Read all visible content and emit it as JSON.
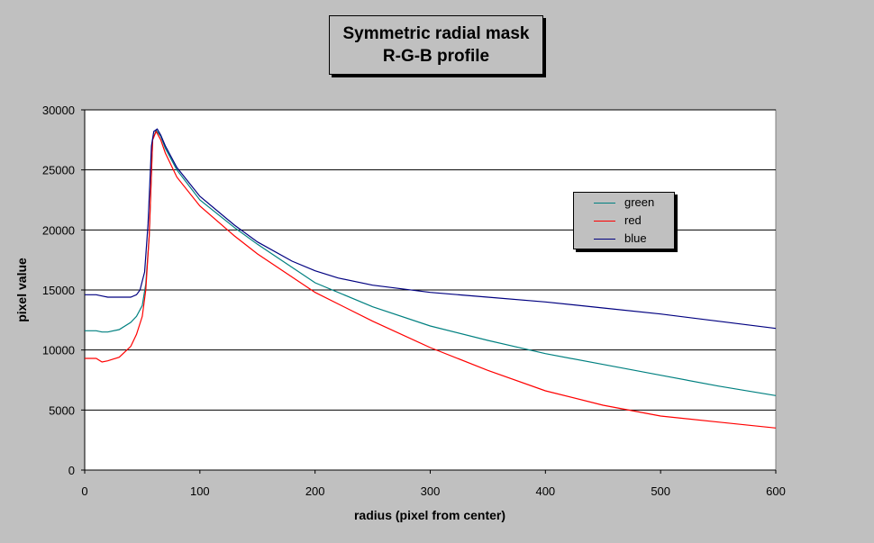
{
  "chart_data": {
    "type": "line",
    "title": "Symmetric radial mask",
    "subtitle": "R-G-B profile",
    "xlabel": "radius (pixel from center)",
    "ylabel": "pixel value",
    "xlim": [
      0,
      600
    ],
    "ylim": [
      0,
      30000
    ],
    "xticks": [
      0,
      100,
      200,
      300,
      400,
      500,
      600
    ],
    "yticks": [
      0,
      5000,
      10000,
      15000,
      20000,
      25000,
      30000
    ],
    "grid": "horizontal",
    "legend_position": "right",
    "series": [
      {
        "name": "green",
        "color": "#008080",
        "x": [
          0,
          10,
          15,
          20,
          30,
          40,
          45,
          50,
          53,
          56,
          59,
          62,
          66,
          70,
          80,
          100,
          130,
          150,
          200,
          250,
          300,
          350,
          400,
          450,
          500,
          550,
          600
        ],
        "y": [
          11600,
          11600,
          11500,
          11500,
          11700,
          12300,
          12800,
          13700,
          15500,
          19500,
          27500,
          28300,
          27800,
          26800,
          25000,
          22500,
          20200,
          18800,
          15600,
          13600,
          12000,
          10800,
          9700,
          8800,
          7900,
          7000,
          6200
        ]
      },
      {
        "name": "red",
        "color": "#ff0000",
        "x": [
          0,
          10,
          15,
          20,
          30,
          40,
          45,
          50,
          53,
          56,
          59,
          62,
          66,
          70,
          80,
          100,
          130,
          150,
          200,
          250,
          300,
          350,
          400,
          450,
          500,
          550,
          600
        ],
        "y": [
          9300,
          9300,
          9000,
          9100,
          9400,
          10300,
          11300,
          12800,
          15000,
          19500,
          27500,
          28200,
          27500,
          26400,
          24400,
          22000,
          19500,
          18000,
          14800,
          12400,
          10200,
          8300,
          6600,
          5400,
          4500,
          4000,
          3500
        ]
      },
      {
        "name": "blue",
        "color": "#000080",
        "x": [
          0,
          10,
          15,
          20,
          30,
          40,
          45,
          48,
          52,
          55,
          58,
          60,
          63,
          66,
          70,
          80,
          100,
          130,
          150,
          180,
          200,
          220,
          250,
          300,
          350,
          400,
          450,
          500,
          550,
          600
        ],
        "y": [
          14600,
          14600,
          14500,
          14400,
          14400,
          14400,
          14600,
          15000,
          16500,
          20500,
          27000,
          28200,
          28400,
          27900,
          27000,
          25200,
          22800,
          20400,
          19000,
          17400,
          16600,
          16000,
          15400,
          14800,
          14400,
          14000,
          13500,
          13000,
          12400,
          11800
        ]
      }
    ]
  }
}
